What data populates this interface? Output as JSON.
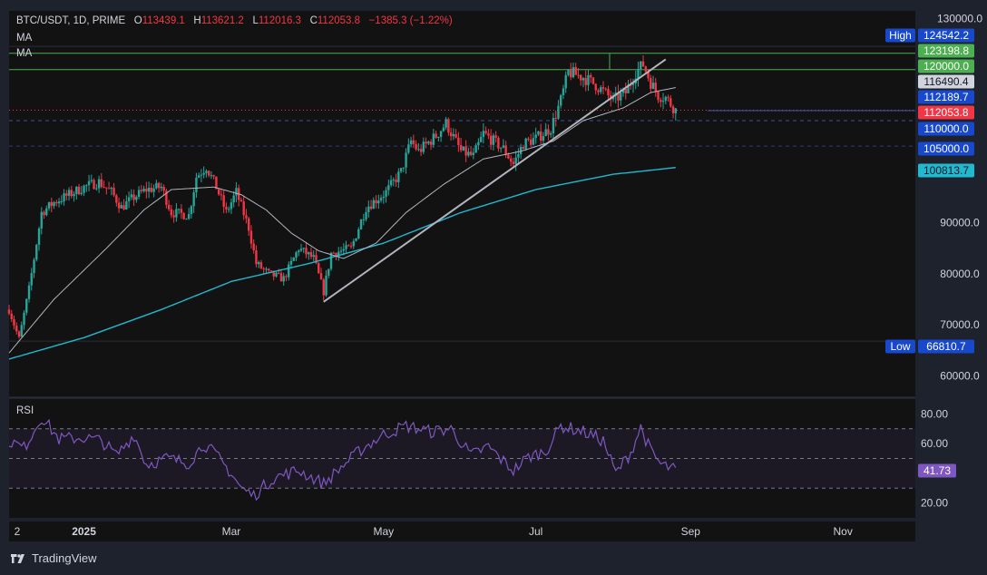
{
  "header": {
    "symbol": "BTC/USDT, 1D, PRIME",
    "open_k": "O",
    "open_v": "113439.1",
    "high_k": "H",
    "high_v": "113621.2",
    "low_k": "L",
    "low_v": "112016.3",
    "close_k": "C",
    "close_v": "112053.8",
    "change": "−1385.3 (−1.22%)"
  },
  "indicators": {
    "ma1": "MA",
    "ma2": "MA",
    "rsi": "RSI"
  },
  "footer": {
    "brand": "TradingView"
  },
  "colors": {
    "up": "#26a69a",
    "down": "#f23645",
    "ma_slow": "#22b8cf",
    "ma_fast": "#b2b5be",
    "rsi": "#7e57c2",
    "green_line": "#4caf50",
    "blue_label": "#1848cc"
  },
  "chart_data": {
    "type": "candlestick",
    "title": "BTC/USDT, 1D, PRIME",
    "y_axis": {
      "ticks": [
        "130000.0",
        "90000.0",
        "80000.0",
        "70000.0",
        "60000.0"
      ],
      "range": [
        56000,
        131500
      ]
    },
    "x_axis": {
      "ticks": [
        "2",
        "2025",
        "Mar",
        "May",
        "Jul",
        "Sep",
        "Nov"
      ],
      "range": [
        "2024-12-02",
        "2025-11-30"
      ]
    },
    "price_labels": [
      {
        "name": "High",
        "value": "124542.2"
      },
      {
        "value": "123198.8"
      },
      {
        "value": "120000.0"
      },
      {
        "value": "116490.4"
      },
      {
        "value": "112189.7"
      },
      {
        "value": "112053.8"
      },
      {
        "value": "110000.0"
      },
      {
        "value": "105000.0"
      },
      {
        "value": "100813.7"
      },
      {
        "name": "Low",
        "value": "66810.7"
      }
    ],
    "horizontal_levels": [
      124542.2,
      123198.8,
      120000.0,
      112053.8,
      110000.0,
      105000.0,
      66810.7
    ],
    "trendline": {
      "from": {
        "date": "2025-04-07",
        "price": 74500
      },
      "to": {
        "date": "2025-08-22",
        "price": 122000
      }
    },
    "price_anchors": [
      [
        "2024-12-02",
        73000
      ],
      [
        "2024-12-06",
        67200
      ],
      [
        "2024-12-10",
        77000
      ],
      [
        "2024-12-15",
        92000
      ],
      [
        "2024-12-20",
        94000
      ],
      [
        "2024-12-24",
        95000
      ],
      [
        "2025-01-01",
        97000
      ],
      [
        "2025-01-07",
        98000
      ],
      [
        "2025-01-12",
        96000
      ],
      [
        "2025-01-16",
        93000
      ],
      [
        "2025-01-21",
        95000
      ],
      [
        "2025-01-26",
        96500
      ],
      [
        "2025-02-01",
        97000
      ],
      [
        "2025-02-05",
        92000
      ],
      [
        "2025-02-12",
        91500
      ],
      [
        "2025-02-15",
        99000
      ],
      [
        "2025-02-19",
        101000
      ],
      [
        "2025-02-23",
        97000
      ],
      [
        "2025-02-27",
        92000
      ],
      [
        "2025-03-03",
        96000
      ],
      [
        "2025-03-08",
        89000
      ],
      [
        "2025-03-11",
        82000
      ],
      [
        "2025-03-16",
        80000
      ],
      [
        "2025-03-22",
        79000
      ],
      [
        "2025-03-28",
        85000
      ],
      [
        "2025-04-03",
        83000
      ],
      [
        "2025-04-07",
        76500
      ],
      [
        "2025-04-10",
        84000
      ],
      [
        "2025-04-18",
        85000
      ],
      [
        "2025-04-24",
        93000
      ],
      [
        "2025-05-02",
        96000
      ],
      [
        "2025-05-08",
        100000
      ],
      [
        "2025-05-12",
        106000
      ],
      [
        "2025-05-15",
        104000
      ],
      [
        "2025-05-22",
        107000
      ],
      [
        "2025-05-26",
        109500
      ],
      [
        "2025-06-01",
        104000
      ],
      [
        "2025-06-06",
        103000
      ],
      [
        "2025-06-10",
        107500
      ],
      [
        "2025-06-18",
        104500
      ],
      [
        "2025-06-22",
        101500
      ],
      [
        "2025-06-26",
        105500
      ],
      [
        "2025-07-01",
        106500
      ],
      [
        "2025-07-07",
        108500
      ],
      [
        "2025-07-11",
        114000
      ],
      [
        "2025-07-14",
        119500
      ],
      [
        "2025-07-20",
        118500
      ],
      [
        "2025-07-25",
        117000
      ],
      [
        "2025-08-01",
        114000
      ],
      [
        "2025-08-06",
        115500
      ],
      [
        "2025-08-10",
        119500
      ],
      [
        "2025-08-13",
        121000
      ],
      [
        "2025-08-16",
        117500
      ],
      [
        "2025-08-19",
        115000
      ],
      [
        "2025-08-22",
        114500
      ],
      [
        "2025-08-26",
        112054
      ]
    ],
    "ma_fast_anchors": [
      [
        "2024-12-02",
        64500
      ],
      [
        "2024-12-20",
        75000
      ],
      [
        "2025-01-10",
        85000
      ],
      [
        "2025-01-25",
        92500
      ],
      [
        "2025-02-05",
        96500
      ],
      [
        "2025-02-22",
        97000
      ],
      [
        "2025-03-05",
        95500
      ],
      [
        "2025-03-15",
        92500
      ],
      [
        "2025-03-25",
        88000
      ],
      [
        "2025-04-05",
        84500
      ],
      [
        "2025-04-15",
        83000
      ],
      [
        "2025-04-28",
        86000
      ],
      [
        "2025-05-10",
        92000
      ],
      [
        "2025-05-25",
        97500
      ],
      [
        "2025-06-10",
        102500
      ],
      [
        "2025-06-25",
        104000
      ],
      [
        "2025-07-08",
        106000
      ],
      [
        "2025-07-20",
        110000
      ],
      [
        "2025-08-05",
        112500
      ],
      [
        "2025-08-16",
        115500
      ],
      [
        "2025-08-26",
        116490
      ]
    ],
    "ma_slow_anchors": [
      [
        "2024-12-02",
        63300
      ],
      [
        "2025-01-01",
        67500
      ],
      [
        "2025-02-01",
        73000
      ],
      [
        "2025-03-01",
        78500
      ],
      [
        "2025-04-01",
        82000
      ],
      [
        "2025-05-01",
        86000
      ],
      [
        "2025-06-01",
        92000
      ],
      [
        "2025-07-01",
        96500
      ],
      [
        "2025-08-01",
        99500
      ],
      [
        "2025-08-26",
        100814
      ]
    ],
    "rsi": {
      "label": "RSI",
      "ticks": [
        "80.00",
        "60.00",
        "20.00"
      ],
      "levels": [
        70,
        50,
        30
      ],
      "last": "41.73",
      "anchors": [
        [
          "2024-12-02",
          62
        ],
        [
          "2024-12-08",
          57
        ],
        [
          "2024-12-15",
          78
        ],
        [
          "2024-12-22",
          63
        ],
        [
          "2025-01-01",
          64
        ],
        [
          "2025-01-08",
          62
        ],
        [
          "2025-01-14",
          52
        ],
        [
          "2025-01-21",
          66
        ],
        [
          "2025-01-26",
          46
        ],
        [
          "2025-02-03",
          50
        ],
        [
          "2025-02-12",
          47
        ],
        [
          "2025-02-18",
          60
        ],
        [
          "2025-02-23",
          52
        ],
        [
          "2025-03-01",
          40
        ],
        [
          "2025-03-05",
          30
        ],
        [
          "2025-03-10",
          25
        ],
        [
          "2025-03-18",
          37
        ],
        [
          "2025-03-28",
          42
        ],
        [
          "2025-04-07",
          33
        ],
        [
          "2025-04-14",
          44
        ],
        [
          "2025-04-22",
          56
        ],
        [
          "2025-05-01",
          66
        ],
        [
          "2025-05-10",
          72
        ],
        [
          "2025-05-20",
          68
        ],
        [
          "2025-05-28",
          70
        ],
        [
          "2025-06-05",
          52
        ],
        [
          "2025-06-12",
          58
        ],
        [
          "2025-06-18",
          48
        ],
        [
          "2025-06-22",
          42
        ],
        [
          "2025-06-28",
          51
        ],
        [
          "2025-07-05",
          55
        ],
        [
          "2025-07-11",
          72
        ],
        [
          "2025-07-20",
          68
        ],
        [
          "2025-07-28",
          62
        ],
        [
          "2025-08-02",
          40
        ],
        [
          "2025-08-08",
          54
        ],
        [
          "2025-08-12",
          71
        ],
        [
          "2025-08-16",
          55
        ],
        [
          "2025-08-20",
          46
        ],
        [
          "2025-08-26",
          42
        ]
      ]
    }
  }
}
